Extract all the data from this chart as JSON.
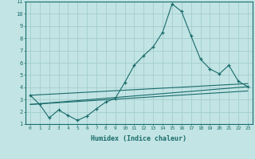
{
  "xlabel": "Humidex (Indice chaleur)",
  "background_color": "#c2e4e4",
  "grid_color": "#a8d0d0",
  "line_color": "#1a6b6b",
  "xlim": [
    -0.5,
    23.5
  ],
  "ylim": [
    1,
    11
  ],
  "xticks": [
    0,
    1,
    2,
    3,
    4,
    5,
    6,
    7,
    8,
    9,
    10,
    11,
    12,
    13,
    14,
    15,
    16,
    17,
    18,
    19,
    20,
    21,
    22,
    23
  ],
  "yticks": [
    1,
    2,
    3,
    4,
    5,
    6,
    7,
    8,
    9,
    10,
    11
  ],
  "main_x": [
    0,
    1,
    2,
    3,
    4,
    5,
    6,
    7,
    8,
    9,
    10,
    11,
    12,
    13,
    14,
    15,
    16,
    17,
    18,
    19,
    20,
    21,
    22,
    23
  ],
  "main_y": [
    3.35,
    2.6,
    1.5,
    2.15,
    1.7,
    1.3,
    1.65,
    2.25,
    2.8,
    3.1,
    4.4,
    5.8,
    6.6,
    7.3,
    8.5,
    10.8,
    10.2,
    8.2,
    6.3,
    5.5,
    5.1,
    5.8,
    4.5,
    4.05
  ],
  "line1_x": [
    0,
    23
  ],
  "line1_y": [
    3.35,
    4.3
  ],
  "line2_x": [
    0,
    23
  ],
  "line2_y": [
    2.6,
    4.05
  ],
  "line3_x": [
    0,
    23
  ],
  "line3_y": [
    2.6,
    3.7
  ]
}
